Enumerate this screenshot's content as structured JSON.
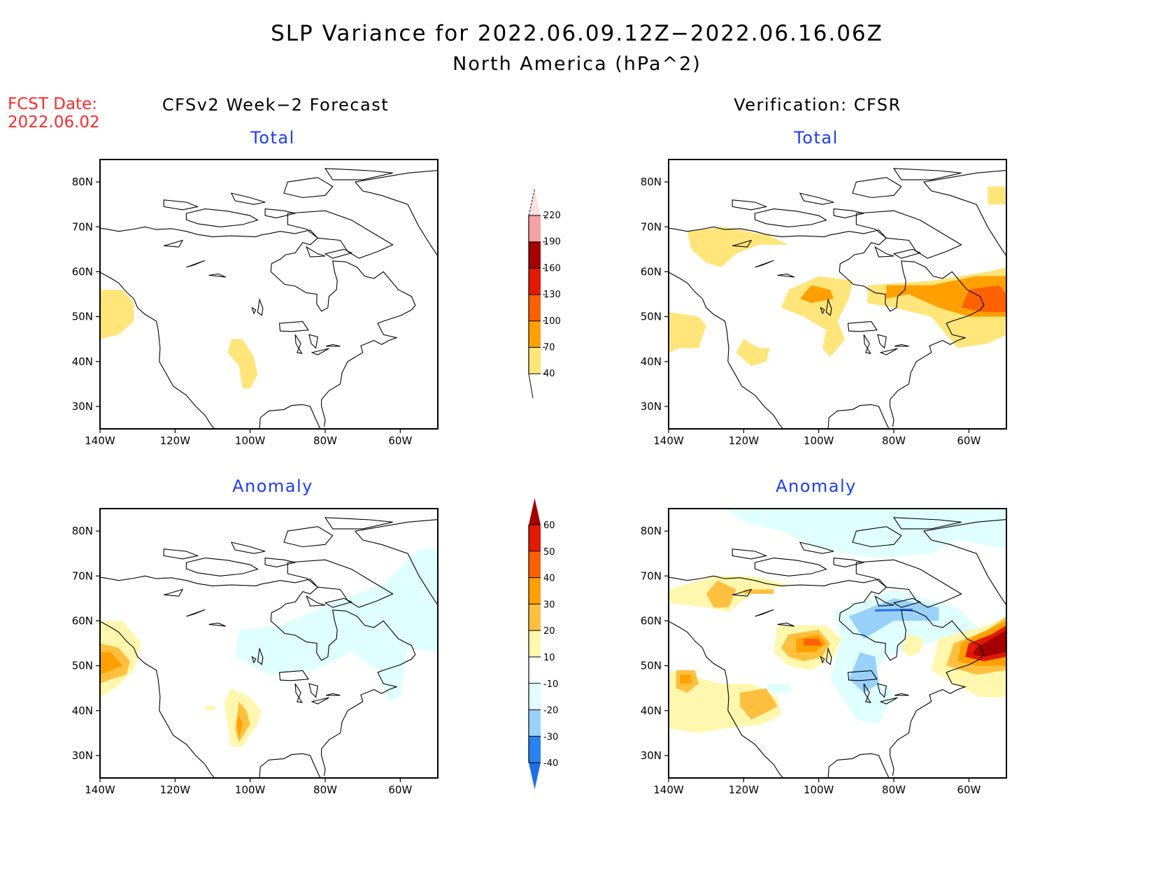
{
  "header": {
    "title": "SLP Variance for 2022.06.09.12Z−2022.06.16.06Z",
    "subtitle": "North America (hPa^2)",
    "fcst_label": "FCST Date:",
    "fcst_date": "2022.06.02"
  },
  "columns": {
    "left": "CFSv2 Week−2 Forecast",
    "right": "Verification: CFSR"
  },
  "colors": {
    "subtitle": "#1d3cf5",
    "fcst": "#ff2a2a"
  },
  "chart_data": [
    {
      "type": "heatmap",
      "id": "forecast-total",
      "title": "Total",
      "column": "CFSv2 Week-2 Forecast",
      "xlabel": "Longitude",
      "ylabel": "Latitude",
      "x_ticks": [
        "140W",
        "120W",
        "100W",
        "80W",
        "60W"
      ],
      "y_ticks": [
        "30N",
        "40N",
        "50N",
        "60N",
        "70N",
        "80N"
      ],
      "xlim": [
        -140,
        -50
      ],
      "ylim": [
        25,
        85
      ],
      "regions": [
        {
          "desc": "NE Pacific off BC coast",
          "center": [
            -136,
            51
          ],
          "level": "40-70"
        },
        {
          "desc": "Central Plains",
          "center": [
            -103,
            40
          ],
          "level": "40-70"
        }
      ]
    },
    {
      "type": "heatmap",
      "id": "verification-total",
      "title": "Total",
      "column": "Verification: CFSR",
      "xlabel": "Longitude",
      "ylabel": "Latitude",
      "x_ticks": [
        "140W",
        "120W",
        "100W",
        "80W",
        "60W"
      ],
      "y_ticks": [
        "30N",
        "40N",
        "50N",
        "60N",
        "70N",
        "80N"
      ],
      "xlim": [
        -140,
        -50
      ],
      "ylim": [
        25,
        85
      ],
      "regions": [
        {
          "desc": "Beaufort Sea / Alaska north",
          "center": [
            -125,
            68
          ],
          "level": "40-70"
        },
        {
          "desc": "Central Canada",
          "center": [
            -100,
            53
          ],
          "level": "40-70"
        },
        {
          "desc": "Lake Athabasca",
          "center": [
            -102,
            55
          ],
          "level": "70-100"
        },
        {
          "desc": "Hudson Bay to Labrador",
          "center": [
            -70,
            54
          ],
          "level": "40-70"
        },
        {
          "desc": "Labrador",
          "center": [
            -60,
            55
          ],
          "level": "70-100"
        },
        {
          "desc": "Labrador core",
          "center": [
            -55,
            56
          ],
          "level": "100-130"
        },
        {
          "desc": "NE Pacific",
          "center": [
            -137,
            47
          ],
          "level": "40-70"
        },
        {
          "desc": "Great Basin",
          "center": [
            -115,
            42
          ],
          "level": "40-70"
        },
        {
          "desc": "Greenland",
          "center": [
            -53,
            77
          ],
          "level": "40-70"
        }
      ]
    },
    {
      "type": "heatmap",
      "id": "forecast-anomaly",
      "title": "Anomaly",
      "column": "CFSv2 Week-2 Forecast",
      "xlabel": "Longitude",
      "ylabel": "Latitude",
      "x_ticks": [
        "140W",
        "120W",
        "100W",
        "80W",
        "60W"
      ],
      "y_ticks": [
        "30N",
        "40N",
        "50N",
        "60N",
        "70N",
        "80N"
      ],
      "xlim": [
        -140,
        -50
      ],
      "ylim": [
        25,
        85
      ],
      "regions": [
        {
          "desc": "NE Pacific off BC",
          "center": [
            -138,
            51
          ],
          "level": "30-40"
        },
        {
          "desc": "Central Plains",
          "center": [
            -103,
            37
          ],
          "level": "30-40"
        },
        {
          "desc": "Hudson Bay to Labrador",
          "center": [
            -80,
            58
          ],
          "level": "-20--10"
        },
        {
          "desc": "Greenland / Baffin",
          "center": [
            -55,
            70
          ],
          "level": "-20--10"
        }
      ]
    },
    {
      "type": "heatmap",
      "id": "verification-anomaly",
      "title": "Anomaly",
      "column": "Verification: CFSR",
      "xlabel": "Longitude",
      "ylabel": "Latitude",
      "x_ticks": [
        "140W",
        "120W",
        "100W",
        "80W",
        "60W"
      ],
      "y_ticks": [
        "30N",
        "40N",
        "50N",
        "60N",
        "70N",
        "80N"
      ],
      "xlim": [
        -140,
        -50
      ],
      "ylim": [
        25,
        85
      ],
      "regions": [
        {
          "desc": "Labrador max",
          "center": [
            -60,
            53
          ],
          "level": ">60"
        },
        {
          "desc": "Lake Athabasca",
          "center": [
            -102,
            55
          ],
          "level": "40-50"
        },
        {
          "desc": "Hudson Bay",
          "center": [
            -82,
            62
          ],
          "level": "-30--20"
        },
        {
          "desc": "Great Lakes north",
          "center": [
            -90,
            50
          ],
          "level": "-30--20"
        },
        {
          "desc": "Alaska north",
          "center": [
            -127,
            66
          ],
          "level": "20-30"
        },
        {
          "desc": "NE Pacific",
          "center": [
            -136,
            47
          ],
          "level": "30-40"
        },
        {
          "desc": "Great Basin",
          "center": [
            -115,
            41
          ],
          "level": "20-30"
        },
        {
          "desc": "Arctic Ocean",
          "center": [
            -90,
            80
          ],
          "level": "-20--10"
        }
      ]
    }
  ],
  "colorbars": {
    "total": {
      "labels": [
        "40",
        "70",
        "100",
        "130",
        "160",
        "190",
        "220"
      ],
      "colors": [
        "#ffe57a",
        "#ffa000",
        "#ff6000",
        "#e11a00",
        "#a40000",
        "#f4a1a1",
        "#fde0e0"
      ]
    },
    "anomaly": {
      "labels": [
        "-40",
        "-30",
        "-20",
        "-10",
        "10",
        "20",
        "30",
        "40",
        "50",
        "60"
      ],
      "colors": [
        "#1e6ee8",
        "#2a82f0",
        "#99d1fa",
        "#e0ffff",
        "#ffffff",
        "#fff7ad",
        "#ffc040",
        "#ffa000",
        "#ff6000",
        "#e11a00",
        "#a40000"
      ]
    }
  },
  "panel_titles": {
    "total": "Total",
    "anomaly": "Anomaly"
  }
}
